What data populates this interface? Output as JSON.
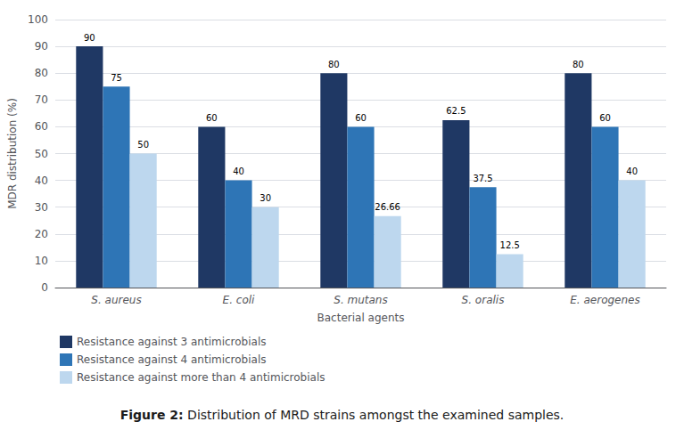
{
  "chart_data": {
    "type": "bar",
    "categories": [
      "S. aureus",
      "E. coli",
      "S. mutans",
      "S. oralis",
      "E. aerogenes"
    ],
    "series": [
      {
        "name": "Resistance against 3 antimicrobials",
        "color": "#1F3864",
        "values": [
          90,
          60,
          80,
          62.5,
          80
        ]
      },
      {
        "name": "Resistance against 4 antimicrobials",
        "color": "#2E75B6",
        "values": [
          75,
          40,
          60,
          37.5,
          60
        ]
      },
      {
        "name": "Resistance against more than 4 antimicrobials",
        "color": "#BDD7EE",
        "values": [
          50,
          30,
          26.66,
          12.5,
          40
        ]
      }
    ],
    "x_label": "Bacterial agents",
    "y_label": "MDR distribution (%)",
    "ylim": [
      0,
      100
    ],
    "yticks": [
      0,
      10,
      20,
      30,
      40,
      50,
      60,
      70,
      80,
      90,
      100
    ],
    "grid": true,
    "legend": "bottom left",
    "data_labels": true,
    "annotations": [
      "Figure 2:",
      "Distribution of MRD strains amongst the examined samples."
    ]
  }
}
